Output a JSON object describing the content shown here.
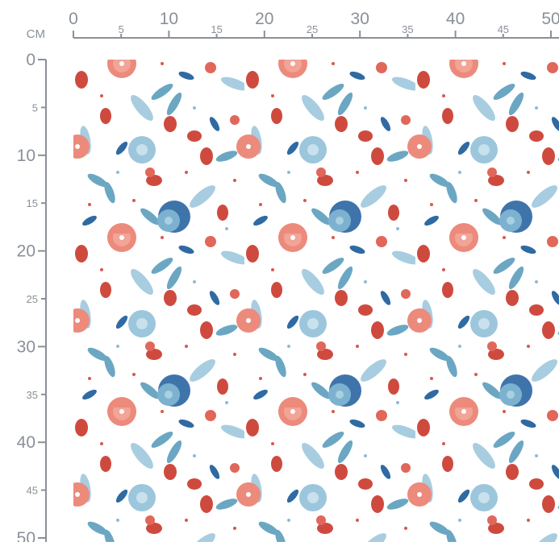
{
  "unit": "CM",
  "top_ruler": {
    "labels": [
      0,
      5,
      10,
      15,
      20,
      25,
      30,
      35,
      40,
      45,
      50
    ]
  },
  "left_ruler": {
    "labels": [
      0,
      5,
      10,
      15,
      20,
      25,
      30,
      35,
      40,
      45,
      50
    ]
  }
}
